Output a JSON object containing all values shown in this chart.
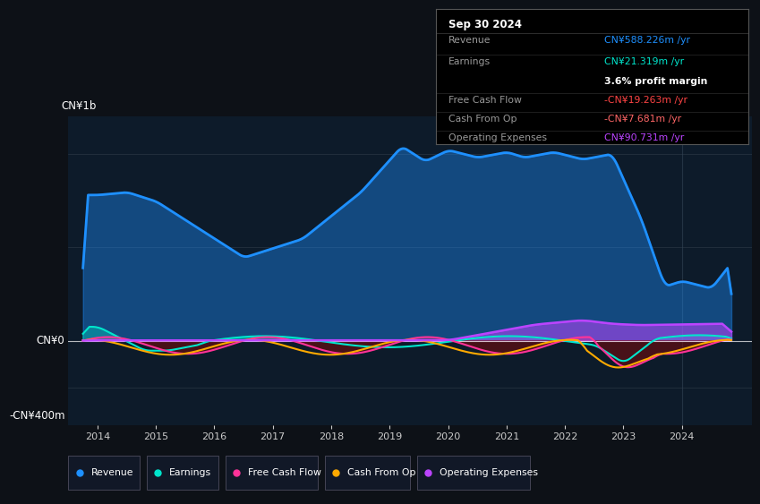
{
  "bg_color": "#0d1117",
  "plot_bg_color": "#0d1b2a",
  "ylabel_top": "CN¥1b",
  "ylabel_bottom": "-CN¥400m",
  "y_zero_label": "CN¥0",
  "colors": {
    "revenue": "#1e90ff",
    "earnings": "#00e5cc",
    "free_cash_flow": "#ff3399",
    "cash_from_op": "#ffaa00",
    "operating_expenses": "#bb44ff"
  },
  "tooltip": {
    "date": "Sep 30 2024",
    "revenue_label": "Revenue",
    "revenue_val": "CN¥588.226m /yr",
    "earnings_label": "Earnings",
    "earnings_val": "CN¥21.319m /yr",
    "profit_margin": "3.6% profit margin",
    "fcf_label": "Free Cash Flow",
    "fcf_val": "-CN¥19.263m /yr",
    "cashop_label": "Cash From Op",
    "cashop_val": "-CN¥7.681m /yr",
    "opex_label": "Operating Expenses",
    "opex_val": "CN¥90.731m /yr"
  },
  "revenue_color_tooltip": "#1e90ff",
  "earnings_color_tooltip": "#00e5cc",
  "fcf_color_tooltip": "#ff4444",
  "cashop_color_tooltip": "#ff6666",
  "opex_color_tooltip": "#bb44ff",
  "legend_items": [
    {
      "label": "Revenue",
      "color": "#1e90ff"
    },
    {
      "label": "Earnings",
      "color": "#00e5cc"
    },
    {
      "label": "Free Cash Flow",
      "color": "#ff3399"
    },
    {
      "label": "Cash From Op",
      "color": "#ffaa00"
    },
    {
      "label": "Operating Expenses",
      "color": "#bb44ff"
    }
  ]
}
